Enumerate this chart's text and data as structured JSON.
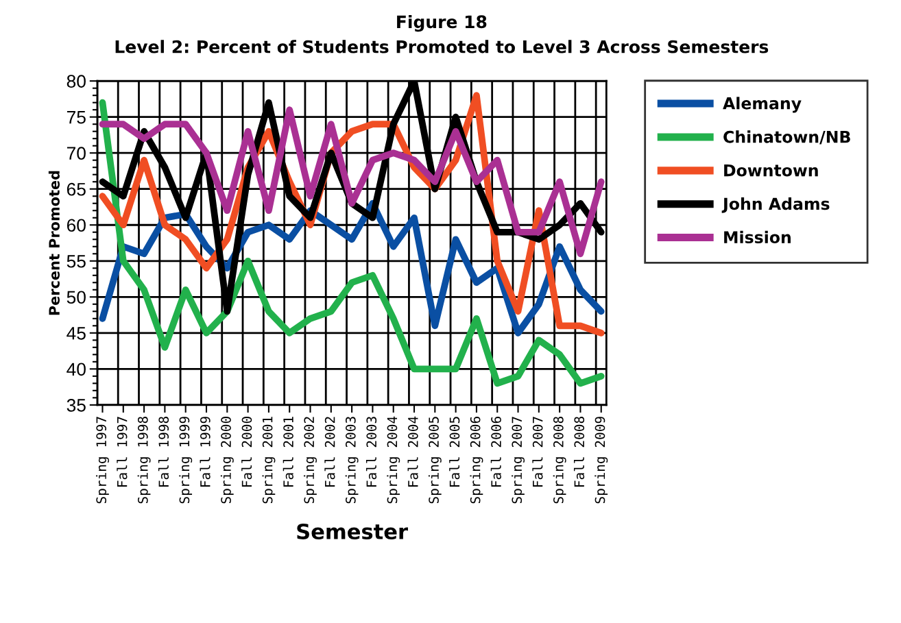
{
  "chart_data": {
    "type": "line",
    "title": "Figure 18",
    "subtitle": "Level 2: Percent of Students Promoted to Level 3 Across Semesters",
    "xlabel": "Semester",
    "ylabel": "Percent Promoted",
    "categories": [
      "Spring 1997",
      "Fall 1997",
      "Spring 1998",
      "Fall 1998",
      "Spring 1999",
      "Fall 1999",
      "Spring 2000",
      "Fall 2000",
      "Spring 2001",
      "Fall 2001",
      "Spring 2002",
      "Fall 2002",
      "Spring 2003",
      "Fall 2003",
      "Spring 2004",
      "Fall 2004",
      "Spring 2005",
      "Fall 2005",
      "Spring 2006",
      "Fall 2006",
      "Spring 2007",
      "Fall 2007",
      "Spring 2008",
      "Fall 2008",
      "Spring 2009"
    ],
    "series": [
      {
        "name": "Alemany",
        "color": "#0a4fa3",
        "values": [
          47,
          57,
          56,
          61,
          61.5,
          57,
          54,
          59,
          60,
          58,
          62,
          60,
          58,
          63,
          57,
          61,
          46,
          58,
          52,
          54,
          45,
          49,
          57,
          51,
          48
        ]
      },
      {
        "name": "Chinatown/NB",
        "color": "#22b14c",
        "values": [
          77,
          55,
          51,
          43,
          51,
          45,
          48,
          55,
          48,
          45,
          47,
          48,
          52,
          53,
          47,
          40,
          40,
          40,
          47,
          38,
          39,
          44,
          42,
          38,
          39
        ]
      },
      {
        "name": "Downtown",
        "color": "#f04e23",
        "values": [
          64,
          60,
          69,
          60,
          58,
          54,
          58,
          68,
          73,
          66,
          60,
          70,
          73,
          74,
          74,
          68,
          65,
          69,
          78,
          55,
          48,
          62,
          46,
          46,
          45
        ]
      },
      {
        "name": "John Adams",
        "color": "#000000",
        "values": [
          66,
          64,
          73,
          68,
          61,
          70,
          48,
          67,
          77,
          64,
          61,
          70,
          63,
          61,
          74,
          80,
          65,
          75,
          66,
          59,
          59,
          58,
          60,
          63,
          59
        ]
      },
      {
        "name": "Mission",
        "color": "#aa3093",
        "values": [
          74,
          74,
          72,
          74,
          74,
          70,
          62,
          73,
          62,
          76,
          64,
          74,
          63,
          69,
          70,
          69,
          66,
          73,
          66,
          69,
          59,
          59,
          66,
          56,
          66
        ]
      }
    ],
    "ylim": [
      35,
      80
    ],
    "yticks": [
      35,
      40,
      45,
      50,
      55,
      60,
      65,
      70,
      75,
      80
    ],
    "grid": true,
    "legend": "right",
    "marker": "none",
    "line_style": "solid"
  }
}
